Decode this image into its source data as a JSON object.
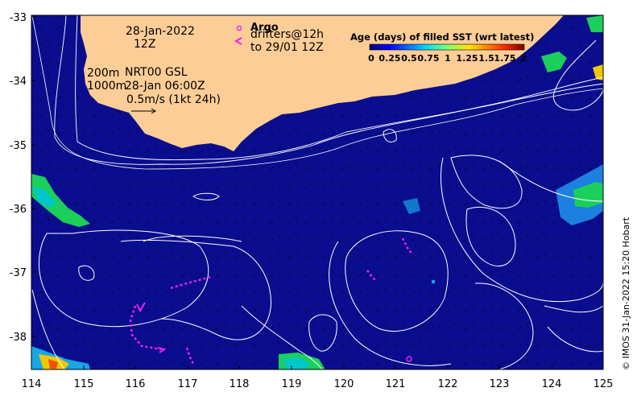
{
  "map": {
    "x_ticks": [
      "114",
      "115",
      "116",
      "117",
      "118",
      "119",
      "120",
      "121",
      "122",
      "123",
      "124",
      "125"
    ],
    "y_ticks": [
      "-33",
      "-34",
      "-35",
      "-36",
      "-37",
      "-38"
    ],
    "date_line1": "28-Jan-2022",
    "date_line2": "12Z",
    "contour_label_200m": "200m",
    "contour_label_1000m": "1000m",
    "product_line1": "NRT00 GSL",
    "product_line2": "28-Jan 06:00Z",
    "velocity_scale_label": "0.5m/s (1kt 24h)",
    "argo_label": "Argo",
    "drifters_line1": "drifters@12h",
    "drifters_line2": "to 29/01 12Z",
    "colorbar_title": "Age (days) of filled SST (wrt latest)",
    "colorbar_ticks": [
      "0",
      "0.25",
      "0.5",
      "0.75",
      "1",
      "1.25",
      "1.5",
      "1.75",
      "2"
    ],
    "credit": "© IMOS 31-Jan-2022 15:20 Hobart"
  },
  "colors": {
    "ocean": "#0b0d8f",
    "land": "#fdcd97",
    "drifter": "#ee22ee",
    "contour": "#ffffff"
  }
}
